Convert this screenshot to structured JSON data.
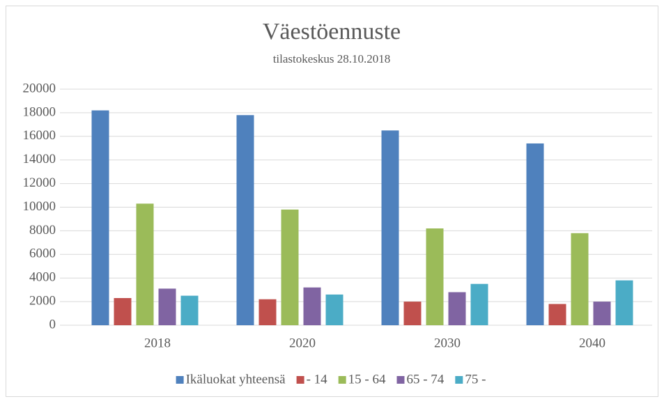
{
  "chart_data": {
    "type": "bar",
    "title": "Väestöennuste",
    "subtitle": "tilastokeskus 28.10.2018",
    "categories": [
      "2018",
      "2020",
      "2030",
      "2040"
    ],
    "series": [
      {
        "name": "Ikäluokat yhteensä",
        "color": "#4f81bd",
        "values": [
          18200,
          17800,
          16500,
          15400
        ]
      },
      {
        "name": "- 14",
        "color": "#c0504d",
        "values": [
          2300,
          2200,
          2000,
          1800
        ]
      },
      {
        "name": "15 - 64",
        "color": "#9bbb59",
        "values": [
          10300,
          9800,
          8200,
          7800
        ]
      },
      {
        "name": "65 - 74",
        "color": "#8064a2",
        "values": [
          3100,
          3200,
          2800,
          2000
        ]
      },
      {
        "name": "75 -",
        "color": "#4bacc6",
        "values": [
          2500,
          2600,
          3500,
          3800
        ]
      }
    ],
    "ylim": [
      0,
      20000
    ],
    "yticks": [
      0,
      2000,
      4000,
      6000,
      8000,
      10000,
      12000,
      14000,
      16000,
      18000,
      20000
    ],
    "grid": true,
    "legend": "bottom"
  }
}
